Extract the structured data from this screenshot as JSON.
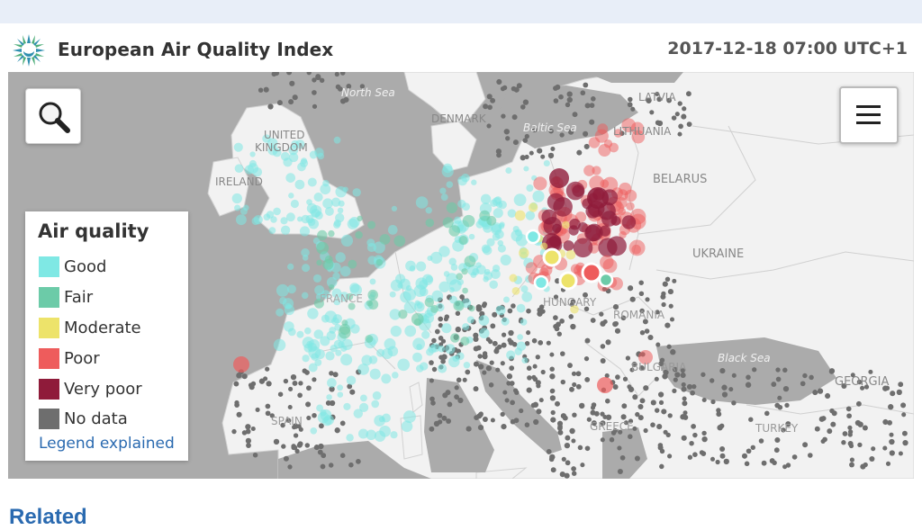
{
  "header": {
    "title": "European Air Quality Index",
    "timestamp": "2017-12-18 07:00 UTC+1",
    "logo_icon": "eea-sun-logo-icon"
  },
  "map": {
    "sea_labels": [
      "North Sea",
      "Baltic Sea",
      "Black Sea"
    ],
    "country_labels": [
      "UNITED KINGDOM",
      "IRELAND",
      "DENMARK",
      "LATVIA",
      "LITHUANIA",
      "BELARUS",
      "UKRAINE",
      "FRANCE",
      "HUNGARY",
      "ROMANIA",
      "BULGARIA",
      "GEORGIA",
      "SPAIN",
      "GREECE",
      "TURKEY"
    ],
    "controls": {
      "search_icon": "magnifier-icon",
      "menu_icon": "hamburger-menu-icon"
    }
  },
  "legend": {
    "title": "Air quality",
    "items": [
      {
        "label": "Good",
        "color": "#7fe8e4"
      },
      {
        "label": "Fair",
        "color": "#6ccba8"
      },
      {
        "label": "Moderate",
        "color": "#ede36a"
      },
      {
        "label": "Poor",
        "color": "#ee5c5c"
      },
      {
        "label": "Very poor",
        "color": "#8f1b3a"
      },
      {
        "label": "No data",
        "color": "#6e6e6e"
      }
    ],
    "link": "Legend explained"
  },
  "below": {
    "heading": "Related"
  }
}
